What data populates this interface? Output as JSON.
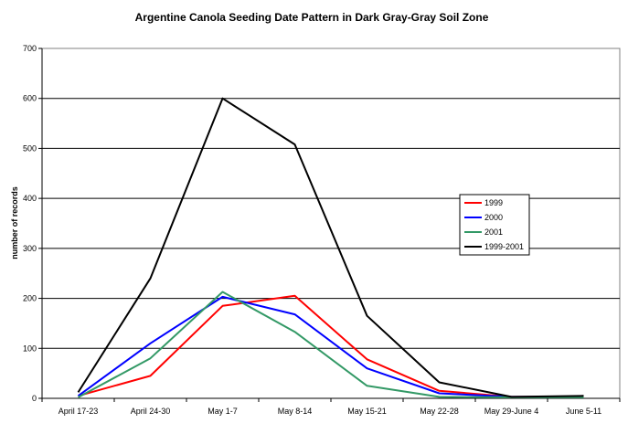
{
  "chart_data": {
    "type": "line",
    "title": "Argentine Canola Seeding Date Pattern in Dark Gray-Gray Soil Zone",
    "xlabel": "",
    "ylabel": "number of records",
    "categories": [
      "April 17-23",
      "April 24-30",
      "May 1-7",
      "May 8-14",
      "May 15-21",
      "May 22-28",
      "May 29-June 4",
      "June 5-11"
    ],
    "ylim": [
      0,
      700
    ],
    "yticks": [
      "0",
      "100",
      "200",
      "300",
      "400",
      "500",
      "600",
      "700"
    ],
    "grid": true,
    "legend_position": "right",
    "series": [
      {
        "name": "1999",
        "color": "#ff0000",
        "values": [
          5,
          45,
          185,
          205,
          78,
          15,
          3,
          3
        ]
      },
      {
        "name": "2000",
        "color": "#0000ff",
        "values": [
          5,
          110,
          203,
          168,
          60,
          10,
          3,
          3
        ]
      },
      {
        "name": "2001",
        "color": "#339966",
        "values": [
          2,
          80,
          213,
          133,
          25,
          3,
          2,
          2
        ]
      },
      {
        "name": "1999-2001",
        "color": "#000000",
        "values": [
          12,
          240,
          600,
          508,
          165,
          32,
          3,
          5
        ]
      }
    ]
  }
}
